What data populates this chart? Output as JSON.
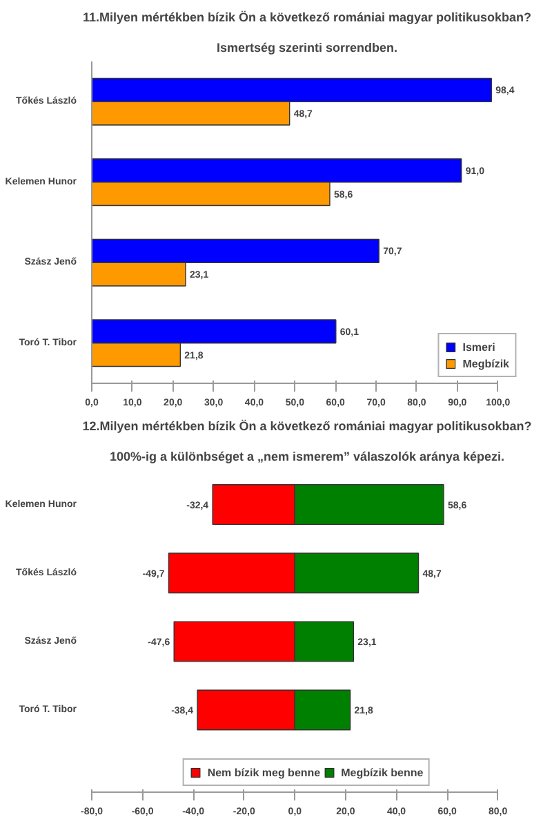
{
  "chart_data": [
    {
      "type": "bar",
      "orientation": "horizontal",
      "title": "11.Milyen mértékben bízik Ön a következő romániai magyar politikusokban?",
      "subtitle": "Ismertség szerinti sorrendben.",
      "categories": [
        "Tőkés László",
        "Kelemen Hunor",
        "Szász Jenő",
        "Toró T. Tibor"
      ],
      "series": [
        {
          "name": "Ismeri",
          "color": "#0000ff",
          "values": [
            98.4,
            91.0,
            70.7,
            60.1
          ],
          "value_labels": [
            "98,4",
            "91,0",
            "70,7",
            "60,1"
          ]
        },
        {
          "name": "Megbízik",
          "color": "#ff9900",
          "values": [
            48.7,
            58.6,
            23.1,
            21.8
          ],
          "value_labels": [
            "48,7",
            "58,6",
            "23,1",
            "21,8"
          ]
        }
      ],
      "xlim": [
        0,
        100
      ],
      "xticks": [
        {
          "value": 0,
          "label": "0,0"
        },
        {
          "value": 10,
          "label": "10,0"
        },
        {
          "value": 20,
          "label": "20,0"
        },
        {
          "value": 30,
          "label": "30,0"
        },
        {
          "value": 40,
          "label": "40,0"
        },
        {
          "value": 50,
          "label": "50,0"
        },
        {
          "value": 60,
          "label": "60,0"
        },
        {
          "value": 70,
          "label": "70,0"
        },
        {
          "value": 80,
          "label": "80,0"
        },
        {
          "value": 90,
          "label": "90,0"
        },
        {
          "value": 100,
          "label": "100,0"
        }
      ],
      "legend": "bottom right",
      "grid": false
    },
    {
      "type": "bar",
      "orientation": "horizontal",
      "stacked": true,
      "title": "12.Milyen mértékben bízik Ön a következő romániai magyar politikusokban?",
      "subtitle": "100%-ig a különbséget a „nem ismerem” válaszolók aránya képezi.",
      "categories": [
        "Kelemen Hunor",
        "Tőkés László",
        "Szász Jenő",
        "Toró T. Tibor"
      ],
      "series": [
        {
          "name": "Nem bízik meg benne",
          "color": "#ff0000",
          "values": [
            -32.4,
            -49.7,
            -47.6,
            -38.4
          ],
          "value_labels": [
            "-32,4",
            "-49,7",
            "-47,6",
            "-38,4"
          ]
        },
        {
          "name": "Megbízik benne",
          "color": "#008000",
          "values": [
            58.6,
            48.7,
            23.1,
            21.8
          ],
          "value_labels": [
            "58,6",
            "48,7",
            "23,1",
            "21,8"
          ]
        }
      ],
      "xlim": [
        -80,
        80
      ],
      "xticks": [
        {
          "value": -80,
          "label": "-80,0"
        },
        {
          "value": -60,
          "label": "-60,0"
        },
        {
          "value": -40,
          "label": "-40,0"
        },
        {
          "value": -20,
          "label": "-20,0"
        },
        {
          "value": 0,
          "label": "0,0"
        },
        {
          "value": 20,
          "label": "20,0"
        },
        {
          "value": 40,
          "label": "40,0"
        },
        {
          "value": 60,
          "label": "60,0"
        },
        {
          "value": 80,
          "label": "80,0"
        }
      ],
      "legend": "bottom",
      "grid": false
    }
  ]
}
